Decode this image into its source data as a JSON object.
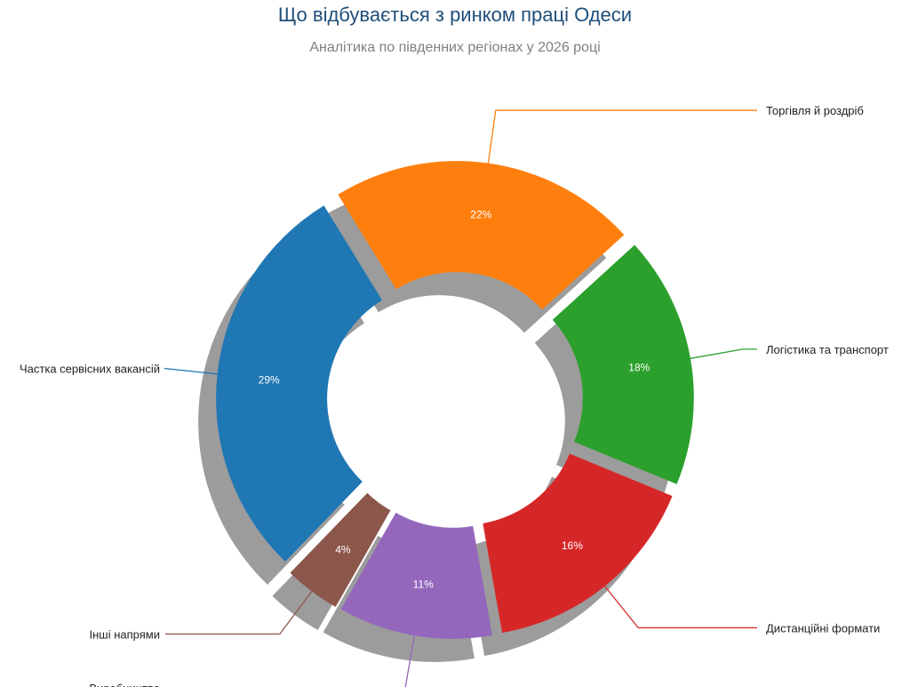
{
  "chart_data": {
    "type": "pie",
    "title": "Що відбувається з ринком праці Одеси",
    "subtitle": "Аналітика по південних регіонах у 2026 році",
    "donut": true,
    "shadow": true,
    "exploded": true,
    "slices": [
      {
        "label": "Частка сервісних вакансій",
        "value": 29,
        "display": "29%",
        "color": "#1f77b4"
      },
      {
        "label": "Торгівля й роздріб",
        "value": 22,
        "display": "22%",
        "color": "#ff7f0e"
      },
      {
        "label": "Логістика та транспорт",
        "value": 18,
        "display": "18%",
        "color": "#2ca02c"
      },
      {
        "label": "Дистанційні формати",
        "value": 16,
        "display": "16%",
        "color": "#d62728"
      },
      {
        "label": "Виробництво",
        "value": 11,
        "display": "11%",
        "color": "#9467bd"
      },
      {
        "label": "Інші напрями",
        "value": 4,
        "display": "4%",
        "color": "#8c564b"
      }
    ]
  }
}
